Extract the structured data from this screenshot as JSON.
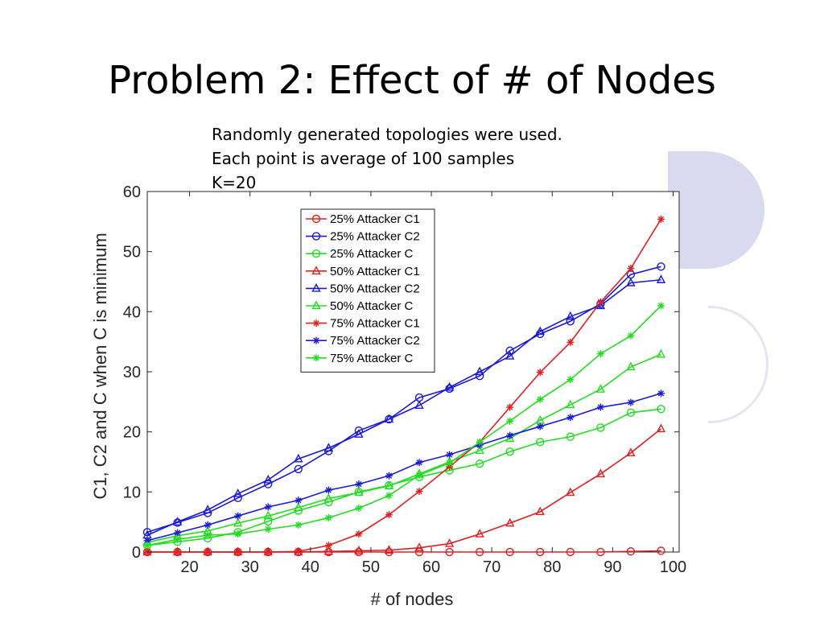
{
  "slide": {
    "title": "Problem 2: Effect of # of Nodes",
    "notes": [
      "Randomly generated topologies were used.",
      "Each point is average of 100 samples",
      "K=20"
    ]
  },
  "chart_data": {
    "type": "line",
    "title": "",
    "xlabel": "# of nodes",
    "ylabel": "C1, C2 and C when C is minimum",
    "xlim": [
      13,
      101
    ],
    "ylim": [
      0,
      60
    ],
    "xticks": [
      20,
      30,
      40,
      50,
      60,
      70,
      80,
      90,
      100
    ],
    "yticks": [
      0,
      10,
      20,
      30,
      40,
      50,
      60
    ],
    "grid": false,
    "legend_position": "top-right",
    "x": [
      13,
      18,
      23,
      28,
      33,
      38,
      43,
      48,
      53,
      58,
      63,
      68,
      73,
      78,
      83,
      88,
      93,
      98
    ],
    "series": [
      {
        "name": "25% Attacker C1",
        "color": "#e02020",
        "marker": "circle",
        "values": [
          0,
          0,
          0,
          0,
          0,
          0,
          0,
          0,
          0,
          0,
          0,
          0,
          0,
          0,
          0,
          0,
          0.1,
          0.2
        ]
      },
      {
        "name": "25% Attacker C2",
        "color": "#1a1ad6",
        "marker": "circle",
        "values": [
          3.3,
          4.9,
          6.5,
          9,
          11.3,
          13.8,
          16.8,
          20.2,
          22.1,
          25.7,
          27.2,
          29.3,
          33.5,
          36.3,
          38.4,
          41.3,
          46.2,
          47.5
        ]
      },
      {
        "name": "25% Attacker C",
        "color": "#22dd22",
        "marker": "circle",
        "values": [
          1.1,
          1.7,
          2.3,
          3.3,
          5.1,
          6.9,
          8.3,
          10,
          11.1,
          12.5,
          13.6,
          14.7,
          16.7,
          18.3,
          19.2,
          20.7,
          23.2,
          23.8
        ]
      },
      {
        "name": "50% Attacker C1",
        "color": "#e02020",
        "marker": "triangle",
        "values": [
          0,
          0,
          0,
          0,
          0,
          0,
          0.1,
          0.2,
          0.3,
          0.7,
          1.4,
          3,
          4.8,
          6.7,
          9.9,
          13,
          16.5,
          20.5
        ]
      },
      {
        "name": "50% Attacker C2",
        "color": "#1a1ad6",
        "marker": "triangle",
        "values": [
          2.8,
          5,
          7,
          9.7,
          12,
          15.5,
          17.3,
          19.6,
          22.1,
          24.4,
          27.4,
          30,
          32.6,
          36.7,
          39.2,
          41,
          44.8,
          45.3
        ]
      },
      {
        "name": "50% Attacker C",
        "color": "#22dd22",
        "marker": "triangle",
        "values": [
          1.6,
          2.7,
          3.5,
          4.8,
          6,
          7.4,
          8.9,
          9.9,
          11,
          13,
          15,
          16.9,
          18.9,
          21.9,
          24.5,
          27.1,
          30.8,
          32.9
        ]
      },
      {
        "name": "75% Attacker C1",
        "color": "#e02020",
        "marker": "star",
        "values": [
          0,
          0,
          0,
          0,
          0,
          0.1,
          1.1,
          3,
          6.2,
          10.1,
          14.2,
          18.3,
          24.1,
          29.9,
          34.9,
          41.6,
          47.2,
          55.4
        ]
      },
      {
        "name": "75% Attacker C2",
        "color": "#1a1ad6",
        "marker": "star",
        "values": [
          1.9,
          3.2,
          4.5,
          6,
          7.5,
          8.6,
          10.3,
          11.3,
          12.7,
          14.9,
          16.2,
          17.8,
          19.4,
          20.9,
          22.4,
          24.1,
          24.9,
          26.4
        ]
      },
      {
        "name": "75% Attacker C",
        "color": "#22dd22",
        "marker": "star",
        "values": [
          1.1,
          2.1,
          2.8,
          3,
          3.8,
          4.5,
          5.7,
          7.3,
          9.4,
          12.8,
          14.8,
          18.3,
          21.8,
          25.4,
          28.7,
          33,
          36,
          41
        ]
      }
    ]
  }
}
